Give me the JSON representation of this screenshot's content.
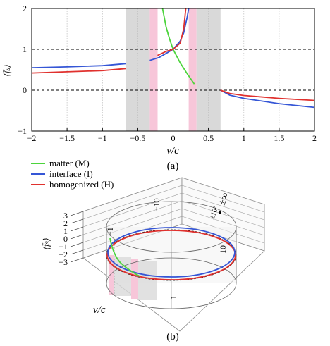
{
  "panel_a": {
    "caption": "(a)",
    "xlabel": "v/c",
    "ylabel": "⟨f̄s⟩",
    "x_ticks": [
      "−2",
      "−1.5",
      "−1",
      "−0.5",
      "0",
      "0.5",
      "1",
      "1.5",
      "2"
    ],
    "y_ticks": [
      "2",
      "1",
      "0",
      "−1"
    ]
  },
  "legend": {
    "matter": "matter (M)",
    "interface": "interface (I)",
    "homogenized": "homogenized (H)"
  },
  "panel_b": {
    "caption": "(b)",
    "ylabel": "⟨f̄s⟩",
    "xlabel": "v/c",
    "y_ticks": [
      "3",
      "2",
      "1",
      "0",
      "−1",
      "−2",
      "−3"
    ],
    "ring_labels": [
      "10",
      "1",
      "−1",
      "−10",
      "±10²",
      "±∞"
    ]
  },
  "chart_data": [
    {
      "type": "line",
      "xlim": [
        -2,
        2
      ],
      "ylim": [
        -1,
        2
      ],
      "x_ticks": [
        -2,
        -1.5,
        -1,
        -0.5,
        0,
        0.5,
        1,
        1.5,
        2
      ],
      "y_ticks": [
        -1,
        0,
        1,
        2
      ],
      "grid": "vertical dotted",
      "reference_lines": [
        {
          "y": 0
        },
        {
          "y": 1
        },
        {
          "x": 0
        }
      ],
      "shaded_bands": [
        {
          "x": [
            -0.67,
            -0.33
          ],
          "color": "#d9d9d9"
        },
        {
          "x": [
            -0.33,
            -0.22
          ],
          "color": "#f7c6d9"
        },
        {
          "x": [
            0.22,
            0.33
          ],
          "color": "#f7c6d9"
        },
        {
          "x": [
            0.33,
            0.67
          ],
          "color": "#d9d9d9"
        }
      ],
      "series": [
        {
          "name": "matter (M)",
          "color": "#4cd43c",
          "segments": [
            [
              [
                -0.15,
                2.0
              ],
              [
                -0.1,
                1.55
              ],
              [
                -0.05,
                1.25
              ],
              [
                0,
                1.0
              ],
              [
                0.1,
                0.67
              ],
              [
                0.2,
                0.4
              ],
              [
                0.3,
                0.15
              ]
            ]
          ]
        },
        {
          "name": "interface (I)",
          "color": "#3556d6",
          "segments": [
            [
              [
                -2,
                0.55
              ],
              [
                -1.5,
                0.57
              ],
              [
                -1,
                0.6
              ],
              [
                -0.67,
                0.65
              ]
            ],
            [
              [
                -0.33,
                0.73
              ],
              [
                -0.2,
                0.8
              ],
              [
                -0.1,
                0.9
              ],
              [
                0,
                1.0
              ],
              [
                0.1,
                1.2
              ],
              [
                0.15,
                1.4
              ],
              [
                0.2,
                1.8
              ],
              [
                0.22,
                2.0
              ]
            ],
            [
              [
                0.67,
                0.0
              ],
              [
                0.8,
                -0.12
              ],
              [
                1.0,
                -0.2
              ],
              [
                1.5,
                -0.33
              ],
              [
                2,
                -0.42
              ]
            ]
          ]
        },
        {
          "name": "homogenized (H)",
          "color": "#e0312e",
          "segments": [
            [
              [
                -2,
                0.42
              ],
              [
                -1.5,
                0.45
              ],
              [
                -1,
                0.48
              ],
              [
                -0.67,
                0.53
              ]
            ],
            [
              [
                -0.22,
                0.85
              ],
              [
                -0.1,
                0.95
              ],
              [
                0,
                1.0
              ],
              [
                0.1,
                1.15
              ],
              [
                0.15,
                1.5
              ],
              [
                0.18,
                2.0
              ]
            ],
            [
              [
                0.67,
                0.0
              ],
              [
                0.8,
                -0.08
              ],
              [
                1.0,
                -0.13
              ],
              [
                1.5,
                -0.2
              ],
              [
                2,
                -0.25
              ]
            ]
          ]
        }
      ]
    },
    {
      "type": "line",
      "projection": "cylindrical",
      "ylim": [
        -3,
        3
      ],
      "y_ticks": [
        -3,
        -2,
        -1,
        0,
        1,
        2,
        3
      ],
      "series_names": [
        "matter (M)",
        "interface (I)",
        "homogenized (H)"
      ]
    }
  ]
}
